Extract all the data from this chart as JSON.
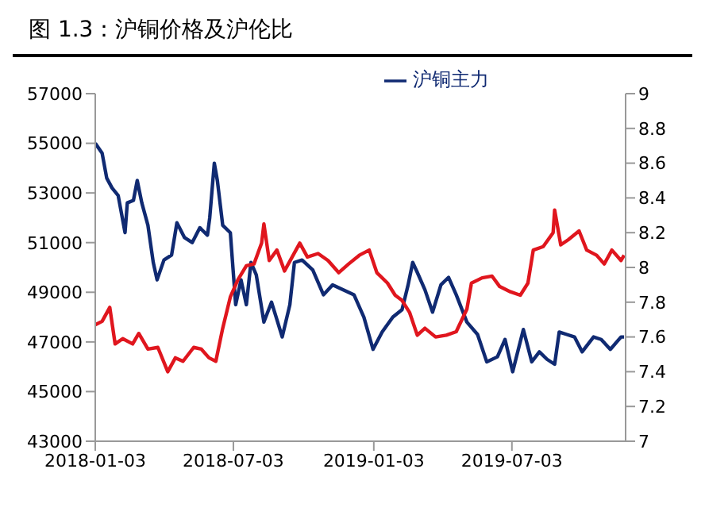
{
  "chart_data": {
    "type": "line",
    "title": "图 1.3：沪铜价格及沪伦比",
    "xlim": [
      "2018-01-03",
      "2019-11-29"
    ],
    "xticks": [
      "2018-01-03",
      "2018-07-03",
      "2019-01-03",
      "2019-07-03"
    ],
    "ylim": [
      43000,
      57000
    ],
    "yticks": [
      43000,
      45000,
      47000,
      49000,
      51000,
      53000,
      55000,
      57000
    ],
    "y2lim": [
      7,
      9
    ],
    "y2ticks": [
      7,
      7.2,
      7.4,
      7.6,
      7.8,
      8,
      8.2,
      8.4,
      8.6,
      8.8,
      9
    ],
    "grid": false,
    "legend": "top",
    "marker": "none",
    "line_style": "solid",
    "series": [
      {
        "name": "沪铜主力",
        "color": "#102a72",
        "x": [
          "2018-01-03",
          "2018-01-12",
          "2018-01-18",
          "2018-01-25",
          "2018-02-02",
          "2018-02-11",
          "2018-02-14",
          "2018-02-22",
          "2018-02-27",
          "2018-03-05",
          "2018-03-13",
          "2018-03-20",
          "2018-03-25",
          "2018-04-03",
          "2018-04-13",
          "2018-04-20",
          "2018-04-30",
          "2018-05-10",
          "2018-05-20",
          "2018-05-30",
          "2018-06-02",
          "2018-06-08",
          "2018-06-12",
          "2018-06-19",
          "2018-06-29",
          "2018-07-06",
          "2018-07-13",
          "2018-07-20",
          "2018-07-26",
          "2018-08-02",
          "2018-08-12",
          "2018-08-22",
          "2018-08-29",
          "2018-09-05",
          "2018-09-15",
          "2018-09-21",
          "2018-10-01",
          "2018-10-15",
          "2018-10-29",
          "2018-11-10",
          "2018-11-24",
          "2018-12-08",
          "2018-12-21",
          "2019-01-02",
          "2019-01-14",
          "2019-01-28",
          "2019-02-09",
          "2019-02-17",
          "2019-02-23",
          "2019-03-01",
          "2019-03-11",
          "2019-03-21",
          "2019-04-01",
          "2019-04-11",
          "2019-04-21",
          "2019-05-05",
          "2019-05-19",
          "2019-05-31",
          "2019-06-14",
          "2019-06-24",
          "2019-07-04",
          "2019-07-18",
          "2019-07-29",
          "2019-08-08",
          "2019-08-18",
          "2019-08-28",
          "2019-09-03",
          "2019-09-13",
          "2019-09-23",
          "2019-10-03",
          "2019-10-18",
          "2019-10-28",
          "2019-11-09",
          "2019-11-23",
          "2019-11-27"
        ],
        "values": [
          55000,
          54600,
          53600,
          53200,
          52900,
          51400,
          52600,
          52700,
          53500,
          52600,
          51700,
          50200,
          49500,
          50300,
          50500,
          51800,
          51200,
          51000,
          51600,
          51300,
          52000,
          54200,
          53500,
          51700,
          51400,
          48500,
          49500,
          48500,
          50200,
          49700,
          47800,
          48600,
          47900,
          47200,
          48500,
          50200,
          50300,
          49900,
          48900,
          49300,
          49100,
          48900,
          48000,
          46700,
          47400,
          48000,
          48300,
          49300,
          50200,
          49800,
          49100,
          48200,
          49300,
          49600,
          48900,
          47800,
          47300,
          46200,
          46400,
          47100,
          45800,
          47500,
          46200,
          46600,
          46300,
          46100,
          47400,
          47300,
          47200,
          46600,
          47200,
          47100,
          46700,
          47200,
          47200
        ]
      },
      {
        "color": "#e0161e",
        "axis": "y2",
        "x": [
          "2018-01-03",
          "2018-01-12",
          "2018-01-22",
          "2018-01-29",
          "2018-02-08",
          "2018-02-21",
          "2018-03-01",
          "2018-03-13",
          "2018-03-26",
          "2018-04-08",
          "2018-04-18",
          "2018-04-28",
          "2018-05-12",
          "2018-05-22",
          "2018-06-01",
          "2018-06-10",
          "2018-06-19",
          "2018-06-29",
          "2018-07-09",
          "2018-07-20",
          "2018-07-30",
          "2018-08-09",
          "2018-08-12",
          "2018-08-19",
          "2018-08-29",
          "2018-09-08",
          "2018-09-18",
          "2018-09-28",
          "2018-10-08",
          "2018-10-22",
          "2018-11-04",
          "2018-11-18",
          "2018-12-01",
          "2018-12-15",
          "2018-12-28",
          "2019-01-07",
          "2019-01-21",
          "2019-01-31",
          "2019-02-09",
          "2019-02-19",
          "2019-03-01",
          "2019-03-11",
          "2019-03-25",
          "2019-04-08",
          "2019-04-21",
          "2019-05-05",
          "2019-05-11",
          "2019-05-25",
          "2019-06-07",
          "2019-06-17",
          "2019-07-01",
          "2019-07-14",
          "2019-07-24",
          "2019-07-31",
          "2019-08-13",
          "2019-08-26",
          "2019-08-28",
          "2019-09-05",
          "2019-09-15",
          "2019-09-29",
          "2019-10-09",
          "2019-10-22",
          "2019-11-01",
          "2019-11-11",
          "2019-11-23",
          "2019-11-27"
        ],
        "values": [
          7.67,
          7.69,
          7.77,
          7.56,
          7.59,
          7.56,
          7.62,
          7.53,
          7.54,
          7.4,
          7.48,
          7.46,
          7.54,
          7.53,
          7.48,
          7.46,
          7.65,
          7.83,
          7.93,
          8.01,
          8.02,
          8.14,
          8.25,
          8.04,
          8.1,
          7.98,
          8.06,
          8.14,
          8.06,
          8.08,
          8.04,
          7.97,
          8.02,
          8.07,
          8.1,
          7.97,
          7.91,
          7.84,
          7.81,
          7.74,
          7.61,
          7.65,
          7.6,
          7.61,
          7.63,
          7.76,
          7.91,
          7.94,
          7.95,
          7.89,
          7.86,
          7.84,
          7.91,
          8.1,
          8.12,
          8.2,
          8.33,
          8.13,
          8.16,
          8.21,
          8.1,
          8.07,
          8.02,
          8.1,
          8.04,
          8.07
        ]
      }
    ]
  }
}
